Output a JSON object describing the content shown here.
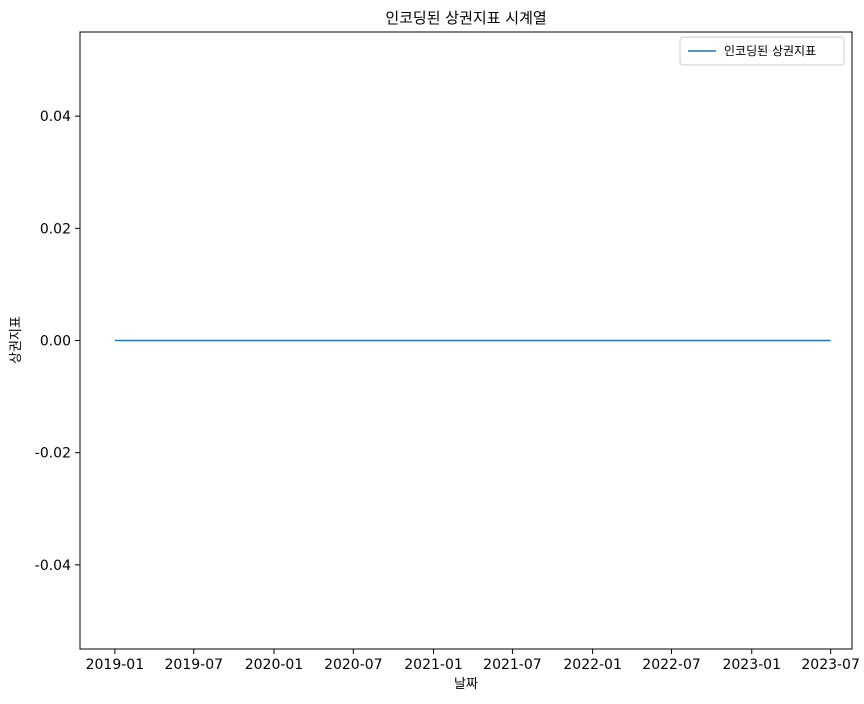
{
  "chart_data": {
    "type": "line",
    "title": "인코딩된 상권지표 시계열",
    "xlabel": "날짜",
    "ylabel": "상권지표",
    "x_ticks": [
      "2019-01",
      "2019-07",
      "2020-01",
      "2020-07",
      "2021-01",
      "2021-07",
      "2022-01",
      "2022-07",
      "2023-01",
      "2023-07"
    ],
    "y_ticks": [
      "0.04",
      "0.02",
      "0.00",
      "-0.02",
      "-0.04"
    ],
    "y_tick_values": [
      0.04,
      0.02,
      0.0,
      -0.02,
      -0.04
    ],
    "ylim": [
      -0.055,
      0.055
    ],
    "xlim": [
      "2018-10-13",
      "2023-08-19"
    ],
    "x_tick_dates": [
      "2019-01-01",
      "2019-07-01",
      "2020-01-01",
      "2020-07-01",
      "2021-01-01",
      "2021-07-01",
      "2022-01-01",
      "2022-07-01",
      "2023-01-01",
      "2023-07-01"
    ],
    "series": [
      {
        "name": "인코딩된 상권지표",
        "color": "#1f77b4",
        "x": [
          "2019-01-01",
          "2023-07-01"
        ],
        "y": [
          0.0,
          0.0
        ]
      }
    ],
    "legend": {
      "position": "top-right",
      "entries": [
        "인코딩된 상권지표"
      ]
    },
    "grid": false
  }
}
